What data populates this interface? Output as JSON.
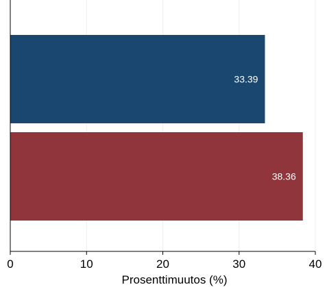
{
  "chart_data": {
    "type": "bar",
    "orientation": "horizontal",
    "title": "",
    "xlabel": "Prosenttimuutos (%)",
    "ylabel": "",
    "xlim": [
      0,
      40
    ],
    "x_ticks": [
      0,
      10,
      20,
      30,
      40
    ],
    "grid": "vertical",
    "legend": "none",
    "series": [
      {
        "values": [
          33.39,
          38.36
        ],
        "data_labels": [
          "33.39",
          "38.36"
        ],
        "colors": [
          "#1a476f",
          "#90353b"
        ]
      }
    ]
  }
}
